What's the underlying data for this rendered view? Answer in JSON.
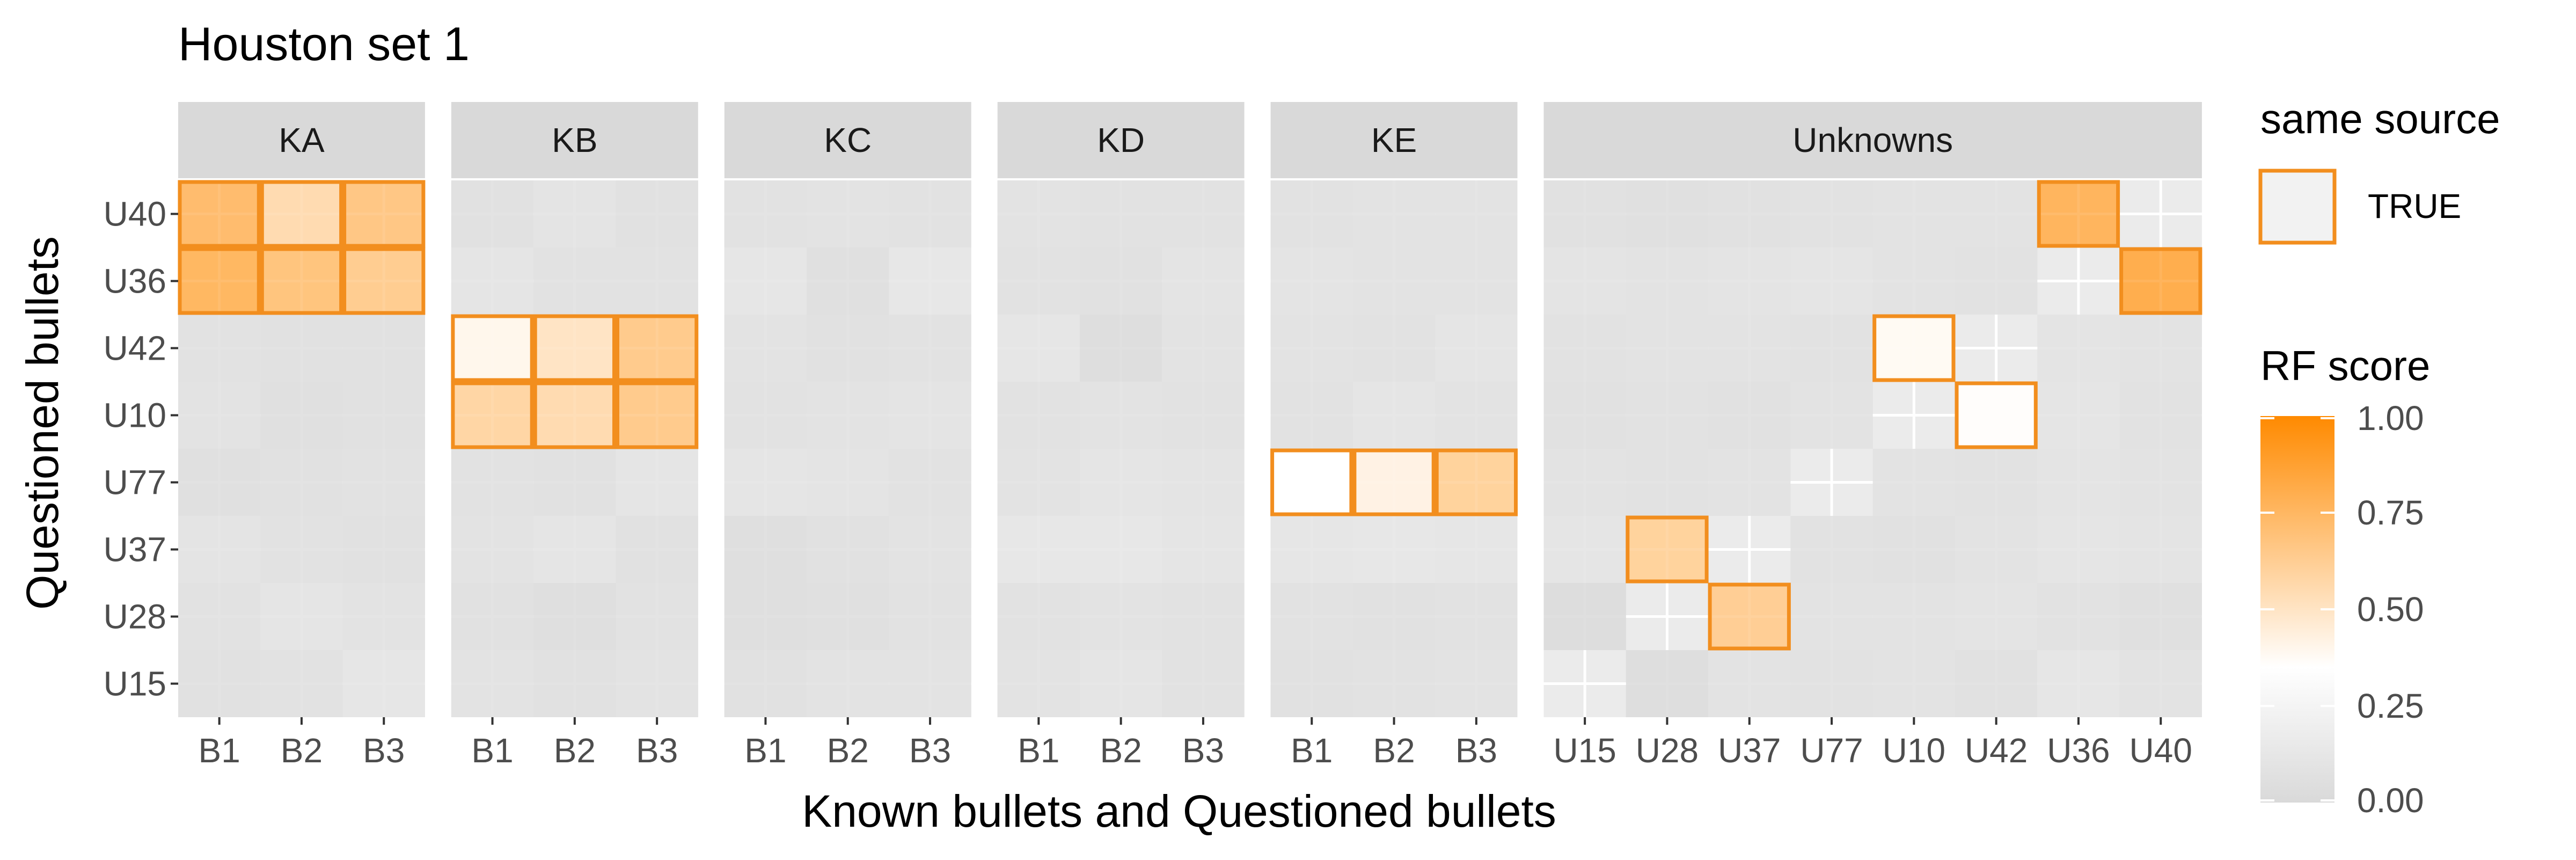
{
  "chart_data": {
    "type": "heatmap",
    "title": "Houston set 1",
    "xlabel": "Known bullets and Questioned bullets",
    "ylabel": "Questioned bullets",
    "y_categories": [
      "U40",
      "U36",
      "U42",
      "U10",
      "U77",
      "U37",
      "U28",
      "U15"
    ],
    "panels": [
      {
        "name": "KA",
        "x_categories": [
          "B1",
          "B2",
          "B3"
        ],
        "values": [
          [
            0.72,
            0.55,
            0.66
          ],
          [
            0.75,
            0.68,
            0.63
          ],
          [
            0.08,
            0.07,
            0.07
          ],
          [
            0.09,
            0.06,
            0.07
          ],
          [
            0.06,
            0.07,
            0.08
          ],
          [
            0.1,
            0.08,
            0.07
          ],
          [
            0.08,
            0.11,
            0.09
          ],
          [
            0.07,
            0.08,
            0.12
          ]
        ],
        "same_source": [
          [
            0,
            0
          ],
          [
            0,
            1
          ],
          [
            0,
            2
          ],
          [
            1,
            0
          ],
          [
            1,
            1
          ],
          [
            1,
            2
          ]
        ]
      },
      {
        "name": "KB",
        "x_categories": [
          "B1",
          "B2",
          "B3"
        ],
        "values": [
          [
            0.07,
            0.1,
            0.07
          ],
          [
            0.11,
            0.08,
            0.08
          ],
          [
            0.4,
            0.5,
            0.64
          ],
          [
            0.58,
            0.55,
            0.64
          ],
          [
            0.08,
            0.07,
            0.11
          ],
          [
            0.09,
            0.11,
            0.07
          ],
          [
            0.07,
            0.05,
            0.08
          ],
          [
            0.09,
            0.07,
            0.09
          ]
        ],
        "same_source": [
          [
            2,
            0
          ],
          [
            2,
            1
          ],
          [
            2,
            2
          ],
          [
            3,
            0
          ],
          [
            3,
            1
          ],
          [
            3,
            2
          ]
        ]
      },
      {
        "name": "KC",
        "x_categories": [
          "B1",
          "B2",
          "B3"
        ],
        "values": [
          [
            0.08,
            0.09,
            0.08
          ],
          [
            0.12,
            0.06,
            0.13
          ],
          [
            0.09,
            0.07,
            0.08
          ],
          [
            0.08,
            0.09,
            0.1
          ],
          [
            0.11,
            0.1,
            0.08
          ],
          [
            0.05,
            0.07,
            0.09
          ],
          [
            0.05,
            0.06,
            0.08
          ],
          [
            0.07,
            0.09,
            0.09
          ]
        ],
        "same_source": []
      },
      {
        "name": "KD",
        "x_categories": [
          "B1",
          "B2",
          "B3"
        ],
        "values": [
          [
            0.09,
            0.08,
            0.08
          ],
          [
            0.08,
            0.07,
            0.1
          ],
          [
            0.12,
            0.04,
            0.09
          ],
          [
            0.08,
            0.09,
            0.08
          ],
          [
            0.09,
            0.11,
            0.1
          ],
          [
            0.13,
            0.13,
            0.11
          ],
          [
            0.08,
            0.09,
            0.08
          ],
          [
            0.09,
            0.11,
            0.08
          ]
        ],
        "same_source": []
      },
      {
        "name": "KE",
        "x_categories": [
          "B1",
          "B2",
          "B3"
        ],
        "values": [
          [
            0.08,
            0.09,
            0.09
          ],
          [
            0.1,
            0.09,
            0.09
          ],
          [
            0.09,
            0.08,
            0.11
          ],
          [
            0.08,
            0.11,
            0.09
          ],
          [
            0.35,
            0.42,
            0.6
          ],
          [
            0.12,
            0.13,
            0.12
          ],
          [
            0.08,
            0.07,
            0.08
          ],
          [
            0.07,
            0.08,
            0.09
          ]
        ],
        "same_source": [
          [
            4,
            0
          ],
          [
            4,
            1
          ],
          [
            4,
            2
          ]
        ]
      },
      {
        "name": "Unknowns",
        "x_categories": [
          "U15",
          "U28",
          "U37",
          "U77",
          "U10",
          "U42",
          "U36",
          "U40"
        ],
        "values": [
          [
            0.07,
            0.06,
            0.07,
            0.08,
            0.09,
            0.09,
            0.76,
            null
          ],
          [
            0.1,
            0.09,
            0.1,
            0.11,
            0.09,
            0.08,
            null,
            0.8
          ],
          [
            0.08,
            0.09,
            0.09,
            0.08,
            0.38,
            null,
            0.1,
            0.09
          ],
          [
            0.07,
            0.08,
            0.07,
            0.09,
            null,
            0.36,
            0.11,
            0.08
          ],
          [
            0.09,
            0.08,
            0.09,
            null,
            0.09,
            0.08,
            0.1,
            0.09
          ],
          [
            0.11,
            0.6,
            null,
            0.08,
            0.07,
            0.09,
            0.11,
            0.1
          ],
          [
            0.03,
            null,
            0.62,
            0.09,
            0.09,
            0.1,
            0.08,
            0.06
          ],
          [
            null,
            0.04,
            0.09,
            0.08,
            0.09,
            0.07,
            0.12,
            0.09
          ]
        ],
        "same_source": [
          [
            0,
            6
          ],
          [
            1,
            7
          ],
          [
            2,
            4
          ],
          [
            3,
            5
          ],
          [
            5,
            1
          ],
          [
            6,
            2
          ]
        ]
      }
    ],
    "color_scale": {
      "title": "RF score",
      "min": 0,
      "max": 1,
      "ticks": [
        "0.00",
        "0.25",
        "0.50",
        "0.75",
        "1.00"
      ],
      "stops": [
        {
          "value": 0.0,
          "color": "#d9d9d9"
        },
        {
          "value": 0.35,
          "color": "#ffffff"
        },
        {
          "value": 1.0,
          "color": "#ff8a00"
        }
      ]
    },
    "legend": {
      "outline_title": "same source",
      "outline_label": "TRUE",
      "outline_color": "#f28e1e",
      "position": "right"
    },
    "panel_background": "#ebebeb",
    "strip_background": "#d9d9d9",
    "grid": true
  }
}
